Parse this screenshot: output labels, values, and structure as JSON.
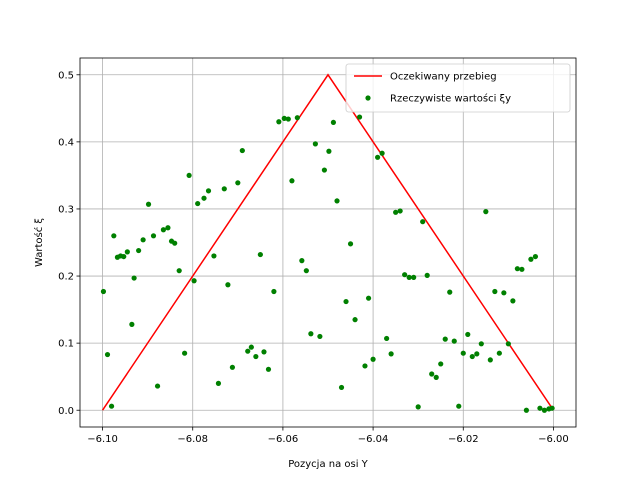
{
  "chart_data": {
    "type": "scatter",
    "xlabel": "Pozycja na osi Y",
    "ylabel": "Wartość ξ",
    "xlim": [
      -6.105,
      -5.995
    ],
    "ylim": [
      -0.025,
      0.525
    ],
    "x_ticks": [
      -6.1,
      -6.08,
      -6.06,
      -6.04,
      -6.02,
      -6.0
    ],
    "x_tick_labels": [
      "−6.10",
      "−6.08",
      "−6.06",
      "−6.04",
      "−6.02",
      "−6.00"
    ],
    "y_ticks": [
      0.0,
      0.1,
      0.2,
      0.3,
      0.4,
      0.5
    ],
    "y_tick_labels": [
      "0.0",
      "0.1",
      "0.2",
      "0.3",
      "0.4",
      "0.5"
    ],
    "grid": true,
    "legend_position": "top-right",
    "series": [
      {
        "name": "Oczekiwany przebieg",
        "kind": "line",
        "color": "#ff0000",
        "x": [
          -6.1,
          -6.05,
          -6.0
        ],
        "y": [
          0.0,
          0.5,
          0.0
        ]
      },
      {
        "name": "Rzeczywiste wartości ξy",
        "kind": "scatter",
        "color": "#008000",
        "x": [
          -6.0998,
          -6.0989,
          -6.098,
          -6.0975,
          -6.0967,
          -6.096,
          -6.0953,
          -6.0945,
          -6.0935,
          -6.093,
          -6.092,
          -6.091,
          -6.0898,
          -6.0887,
          -6.0878,
          -6.0865,
          -6.0855,
          -6.0847,
          -6.084,
          -6.083,
          -6.0818,
          -6.0808,
          -6.0797,
          -6.0789,
          -6.0775,
          -6.0765,
          -6.0753,
          -6.0743,
          -6.073,
          -6.0722,
          -6.0712,
          -6.07,
          -6.069,
          -6.0678,
          -6.067,
          -6.066,
          -6.065,
          -6.0642,
          -6.0632,
          -6.062,
          -6.0609,
          -6.0597,
          -6.0588,
          -6.058,
          -6.0568,
          -6.0558,
          -6.0548,
          -6.0538,
          -6.0528,
          -6.0518,
          -6.0508,
          -6.0498,
          -6.0488,
          -6.048,
          -6.047,
          -6.046,
          -6.045,
          -6.044,
          -6.043,
          -6.0418,
          -6.041,
          -6.04,
          -6.039,
          -6.038,
          -6.037,
          -6.036,
          -6.035,
          -6.034,
          -6.033,
          -6.032,
          -6.031,
          -6.03,
          -6.029,
          -6.028,
          -6.027,
          -6.026,
          -6.025,
          -6.024,
          -6.023,
          -6.022,
          -6.021,
          -6.02,
          -6.019,
          -6.018,
          -6.017,
          -6.016,
          -6.015,
          -6.014,
          -6.013,
          -6.012,
          -6.011,
          -6.01,
          -6.009,
          -6.008,
          -6.007,
          -6.006,
          -6.005,
          -6.004,
          -6.003,
          -6.002,
          -6.001,
          -6.0003
        ],
        "y": [
          0.177,
          0.083,
          0.006,
          0.26,
          0.228,
          0.23,
          0.229,
          0.236,
          0.128,
          0.197,
          0.238,
          0.254,
          0.307,
          0.26,
          0.036,
          0.269,
          0.272,
          0.252,
          0.249,
          0.208,
          0.085,
          0.35,
          0.193,
          0.308,
          0.316,
          0.327,
          0.23,
          0.04,
          0.33,
          0.187,
          0.064,
          0.339,
          0.387,
          0.088,
          0.094,
          0.08,
          0.232,
          0.087,
          0.061,
          0.177,
          0.43,
          0.435,
          0.434,
          0.342,
          0.436,
          0.223,
          0.208,
          0.114,
          0.397,
          0.11,
          0.358,
          0.386,
          0.429,
          0.312,
          0.034,
          0.162,
          0.248,
          0.135,
          0.437,
          0.066,
          0.167,
          0.076,
          0.377,
          0.383,
          0.107,
          0.084,
          0.295,
          0.297,
          0.202,
          0.198,
          0.198,
          0.005,
          0.281,
          0.201,
          0.054,
          0.049,
          0.069,
          0.106,
          0.176,
          0.103,
          0.006,
          0.085,
          0.113,
          0.08,
          0.084,
          0.099,
          0.296,
          0.075,
          0.177,
          0.085,
          0.175,
          0.099,
          0.163,
          0.211,
          0.21,
          0.0,
          0.225,
          0.229,
          0.003,
          0.0,
          0.002,
          0.003
        ]
      }
    ]
  }
}
